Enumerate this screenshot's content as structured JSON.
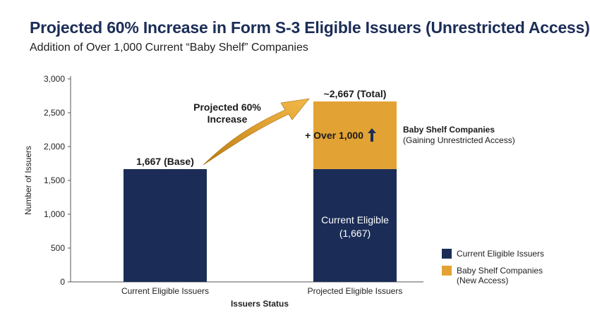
{
  "header": {
    "title": "Projected 60% Increase in Form S-3 Eligible Issuers (Unrestricted Access)",
    "subtitle": "Addition of Over 1,000 Current “Baby Shelf” Companies"
  },
  "colors": {
    "navy": "#1b2d57",
    "gold": "#e2a334"
  },
  "chart_data": {
    "type": "bar",
    "stacked": true,
    "categories": [
      "Current Eligible Issuers",
      "Projected Eligible Issuers"
    ],
    "series": [
      {
        "name": "Current Eligible Issuers",
        "values": [
          1667,
          1667
        ],
        "color": "#1b2d57"
      },
      {
        "name": "Baby Shelf Companies (New Access)",
        "values": [
          0,
          1000
        ],
        "color": "#e2a334"
      }
    ],
    "ylim": [
      0,
      3000
    ],
    "yticks": [
      0,
      500,
      1000,
      1500,
      2000,
      2500,
      3000
    ],
    "ytick_labels": [
      "0",
      "500",
      "1,000",
      "1,500",
      "2,000",
      "2,500",
      "3,000"
    ],
    "ylabel": "Number of Issuers",
    "xlabel": "Issuers Status",
    "grid": false,
    "legend_position": "bottom-right",
    "annotations": {
      "base_label": "1,667 (Base)",
      "total_label": "~2,667 (Total)",
      "arrow_line1": "Projected 60%",
      "arrow_line2": "Increase",
      "increment_label": "+ Over 1,000",
      "current_inner_line1": "Current Eligible",
      "current_inner_line2": "(1,667)",
      "baby_shelf_title": "Baby Shelf Companies",
      "baby_shelf_subtitle": "(Gaining Unrestricted Access)"
    },
    "legend": [
      {
        "lines": [
          "Current Eligible Issuers"
        ],
        "color": "#1b2d57"
      },
      {
        "lines": [
          "Baby Shelf Companies",
          "(New Access)"
        ],
        "color": "#e2a334"
      }
    ]
  }
}
